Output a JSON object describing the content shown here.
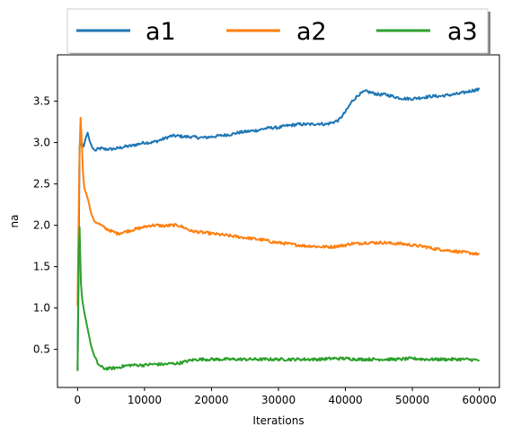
{
  "chart_data": {
    "type": "line",
    "xlabel": "Iterations",
    "ylabel": "na",
    "xlim": [
      -3000,
      63000
    ],
    "ylim": [
      0.04,
      4.06
    ],
    "xticks": [
      0,
      10000,
      20000,
      30000,
      40000,
      50000,
      60000
    ],
    "yticks": [
      0.5,
      1.0,
      1.5,
      2.0,
      2.5,
      3.0,
      3.5
    ],
    "xtick_labels": [
      "0",
      "10000",
      "20000",
      "30000",
      "40000",
      "50000",
      "60000"
    ],
    "ytick_labels": [
      "0.5",
      "1.0",
      "1.5",
      "2.0",
      "2.5",
      "3.0",
      "3.5"
    ],
    "grid": false,
    "legend": {
      "placement": "top-center, above plot",
      "columns": 3
    },
    "series": [
      {
        "name": "a1",
        "color": "#1f77b4",
        "points": [
          [
            0,
            0.25
          ],
          [
            150,
            1.4
          ],
          [
            300,
            2.95
          ],
          [
            600,
            3.0
          ],
          [
            900,
            2.95
          ],
          [
            1200,
            3.05
          ],
          [
            1500,
            3.12
          ],
          [
            1800,
            3.02
          ],
          [
            2200,
            2.94
          ],
          [
            2600,
            2.9
          ],
          [
            3000,
            2.92
          ],
          [
            3500,
            2.93
          ],
          [
            4000,
            2.92
          ],
          [
            5000,
            2.92
          ],
          [
            6000,
            2.93
          ],
          [
            7000,
            2.95
          ],
          [
            8000,
            2.96
          ],
          [
            9000,
            2.98
          ],
          [
            10000,
            3.0
          ],
          [
            11000,
            3.0
          ],
          [
            12000,
            3.02
          ],
          [
            13000,
            3.05
          ],
          [
            14000,
            3.08
          ],
          [
            15000,
            3.08
          ],
          [
            16000,
            3.07
          ],
          [
            17000,
            3.07
          ],
          [
            18000,
            3.06
          ],
          [
            19000,
            3.06
          ],
          [
            20000,
            3.07
          ],
          [
            21000,
            3.08
          ],
          [
            22000,
            3.09
          ],
          [
            23000,
            3.1
          ],
          [
            24000,
            3.12
          ],
          [
            25000,
            3.13
          ],
          [
            26000,
            3.14
          ],
          [
            27000,
            3.15
          ],
          [
            28000,
            3.17
          ],
          [
            29000,
            3.18
          ],
          [
            30000,
            3.18
          ],
          [
            31000,
            3.2
          ],
          [
            32000,
            3.21
          ],
          [
            33000,
            3.22
          ],
          [
            34000,
            3.22
          ],
          [
            35000,
            3.22
          ],
          [
            36000,
            3.23
          ],
          [
            37000,
            3.22
          ],
          [
            38000,
            3.24
          ],
          [
            39000,
            3.27
          ],
          [
            40000,
            3.37
          ],
          [
            41000,
            3.5
          ],
          [
            42000,
            3.58
          ],
          [
            43000,
            3.62
          ],
          [
            44000,
            3.6
          ],
          [
            45000,
            3.58
          ],
          [
            46000,
            3.58
          ],
          [
            47000,
            3.56
          ],
          [
            48000,
            3.54
          ],
          [
            49000,
            3.53
          ],
          [
            50000,
            3.53
          ],
          [
            51000,
            3.54
          ],
          [
            52000,
            3.55
          ],
          [
            53000,
            3.56
          ],
          [
            54000,
            3.56
          ],
          [
            55000,
            3.57
          ],
          [
            56000,
            3.58
          ],
          [
            57000,
            3.59
          ],
          [
            58000,
            3.61
          ],
          [
            59000,
            3.63
          ],
          [
            60000,
            3.64
          ]
        ]
      },
      {
        "name": "a2",
        "color": "#ff7f0e",
        "points": [
          [
            0,
            1.03
          ],
          [
            150,
            2.05
          ],
          [
            300,
            2.9
          ],
          [
            450,
            3.3
          ],
          [
            600,
            3.05
          ],
          [
            800,
            2.65
          ],
          [
            1000,
            2.45
          ],
          [
            1300,
            2.38
          ],
          [
            1600,
            2.3
          ],
          [
            2000,
            2.15
          ],
          [
            2500,
            2.05
          ],
          [
            3000,
            2.03
          ],
          [
            3500,
            2.0
          ],
          [
            4000,
            1.97
          ],
          [
            5000,
            1.93
          ],
          [
            6000,
            1.9
          ],
          [
            7000,
            1.92
          ],
          [
            8000,
            1.94
          ],
          [
            9000,
            1.96
          ],
          [
            10000,
            1.98
          ],
          [
            11000,
            2.0
          ],
          [
            12000,
            2.0
          ],
          [
            13000,
            1.99
          ],
          [
            14000,
            2.0
          ],
          [
            15000,
            2.0
          ],
          [
            16000,
            1.97
          ],
          [
            17000,
            1.93
          ],
          [
            18000,
            1.92
          ],
          [
            19000,
            1.91
          ],
          [
            20000,
            1.9
          ],
          [
            21000,
            1.89
          ],
          [
            22000,
            1.88
          ],
          [
            23000,
            1.87
          ],
          [
            24000,
            1.86
          ],
          [
            25000,
            1.85
          ],
          [
            26000,
            1.84
          ],
          [
            27000,
            1.83
          ],
          [
            28000,
            1.82
          ],
          [
            29000,
            1.8
          ],
          [
            30000,
            1.79
          ],
          [
            31000,
            1.78
          ],
          [
            32000,
            1.77
          ],
          [
            33000,
            1.76
          ],
          [
            34000,
            1.75
          ],
          [
            35000,
            1.75
          ],
          [
            36000,
            1.74
          ],
          [
            37000,
            1.74
          ],
          [
            38000,
            1.74
          ],
          [
            39000,
            1.75
          ],
          [
            40000,
            1.76
          ],
          [
            41000,
            1.78
          ],
          [
            42000,
            1.78
          ],
          [
            43000,
            1.79
          ],
          [
            44000,
            1.79
          ],
          [
            45000,
            1.79
          ],
          [
            46000,
            1.79
          ],
          [
            47000,
            1.78
          ],
          [
            48000,
            1.78
          ],
          [
            49000,
            1.77
          ],
          [
            50000,
            1.76
          ],
          [
            51000,
            1.75
          ],
          [
            52000,
            1.74
          ],
          [
            53000,
            1.72
          ],
          [
            54000,
            1.71
          ],
          [
            55000,
            1.7
          ],
          [
            56000,
            1.69
          ],
          [
            57000,
            1.68
          ],
          [
            58000,
            1.67
          ],
          [
            59000,
            1.66
          ],
          [
            60000,
            1.65
          ]
        ]
      },
      {
        "name": "a3",
        "color": "#2ca02c",
        "points": [
          [
            0,
            0.24
          ],
          [
            150,
            1.6
          ],
          [
            300,
            1.98
          ],
          [
            500,
            1.3
          ],
          [
            700,
            1.1
          ],
          [
            1000,
            0.95
          ],
          [
            1500,
            0.75
          ],
          [
            2000,
            0.55
          ],
          [
            2500,
            0.42
          ],
          [
            3000,
            0.33
          ],
          [
            3500,
            0.29
          ],
          [
            4000,
            0.27
          ],
          [
            5000,
            0.27
          ],
          [
            6000,
            0.28
          ],
          [
            7000,
            0.3
          ],
          [
            8000,
            0.31
          ],
          [
            9000,
            0.31
          ],
          [
            10000,
            0.31
          ],
          [
            11000,
            0.32
          ],
          [
            12000,
            0.32
          ],
          [
            13000,
            0.32
          ],
          [
            14000,
            0.33
          ],
          [
            15000,
            0.33
          ],
          [
            16000,
            0.35
          ],
          [
            17000,
            0.37
          ],
          [
            18000,
            0.38
          ],
          [
            19000,
            0.38
          ],
          [
            20000,
            0.38
          ],
          [
            22000,
            0.38
          ],
          [
            24000,
            0.38
          ],
          [
            26000,
            0.38
          ],
          [
            28000,
            0.38
          ],
          [
            30000,
            0.38
          ],
          [
            32000,
            0.38
          ],
          [
            34000,
            0.38
          ],
          [
            36000,
            0.38
          ],
          [
            38000,
            0.39
          ],
          [
            40000,
            0.39
          ],
          [
            42000,
            0.38
          ],
          [
            44000,
            0.38
          ],
          [
            46000,
            0.38
          ],
          [
            48000,
            0.38
          ],
          [
            50000,
            0.39
          ],
          [
            52000,
            0.38
          ],
          [
            54000,
            0.38
          ],
          [
            56000,
            0.38
          ],
          [
            58000,
            0.38
          ],
          [
            60000,
            0.37
          ]
        ]
      }
    ]
  }
}
